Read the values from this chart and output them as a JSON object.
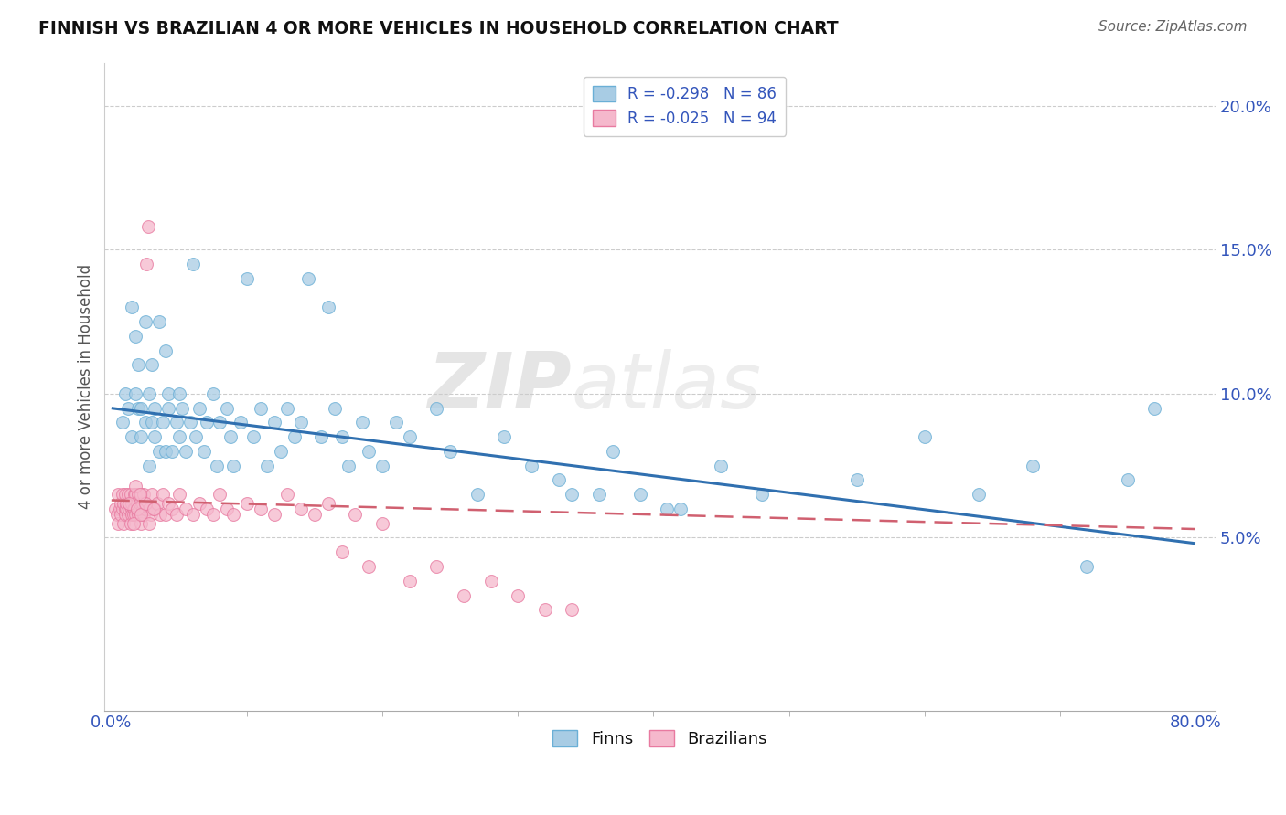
{
  "title": "FINNISH VS BRAZILIAN 4 OR MORE VEHICLES IN HOUSEHOLD CORRELATION CHART",
  "source": "Source: ZipAtlas.com",
  "ylabel": "4 or more Vehicles in Household",
  "legend_entry1": "R = -0.298   N = 86",
  "legend_entry2": "R = -0.025   N = 94",
  "finn_color": "#a8cce4",
  "finn_edge_color": "#6aafd6",
  "brazil_color": "#f5b8cc",
  "brazil_edge_color": "#e87aa0",
  "finn_line_color": "#3070b0",
  "brazil_line_color": "#d06070",
  "finn_R": -0.298,
  "finn_N": 86,
  "brazil_R": -0.025,
  "brazil_N": 94,
  "xlim": [
    -0.005,
    0.815
  ],
  "ylim": [
    -0.01,
    0.215
  ],
  "x_left_label": "0.0%",
  "x_right_label": "80.0%",
  "ytick_values": [
    0.05,
    0.1,
    0.15,
    0.2
  ],
  "finn_line_start_y": 0.095,
  "finn_line_end_y": 0.048,
  "brazil_line_start_y": 0.063,
  "brazil_line_end_y": 0.053,
  "finn_x": [
    0.008,
    0.01,
    0.012,
    0.015,
    0.015,
    0.018,
    0.018,
    0.02,
    0.02,
    0.022,
    0.022,
    0.025,
    0.025,
    0.028,
    0.028,
    0.03,
    0.03,
    0.032,
    0.032,
    0.035,
    0.035,
    0.038,
    0.04,
    0.04,
    0.042,
    0.042,
    0.045,
    0.048,
    0.05,
    0.05,
    0.052,
    0.055,
    0.058,
    0.06,
    0.062,
    0.065,
    0.068,
    0.07,
    0.075,
    0.078,
    0.08,
    0.085,
    0.088,
    0.09,
    0.095,
    0.1,
    0.105,
    0.11,
    0.115,
    0.12,
    0.125,
    0.13,
    0.135,
    0.14,
    0.145,
    0.155,
    0.16,
    0.165,
    0.17,
    0.175,
    0.185,
    0.19,
    0.2,
    0.21,
    0.22,
    0.24,
    0.25,
    0.27,
    0.29,
    0.31,
    0.33,
    0.36,
    0.39,
    0.42,
    0.45,
    0.48,
    0.55,
    0.6,
    0.64,
    0.68,
    0.72,
    0.75,
    0.34,
    0.37,
    0.41,
    0.77
  ],
  "finn_y": [
    0.09,
    0.1,
    0.095,
    0.13,
    0.085,
    0.1,
    0.12,
    0.095,
    0.11,
    0.085,
    0.095,
    0.125,
    0.09,
    0.1,
    0.075,
    0.11,
    0.09,
    0.085,
    0.095,
    0.08,
    0.125,
    0.09,
    0.115,
    0.08,
    0.1,
    0.095,
    0.08,
    0.09,
    0.1,
    0.085,
    0.095,
    0.08,
    0.09,
    0.145,
    0.085,
    0.095,
    0.08,
    0.09,
    0.1,
    0.075,
    0.09,
    0.095,
    0.085,
    0.075,
    0.09,
    0.14,
    0.085,
    0.095,
    0.075,
    0.09,
    0.08,
    0.095,
    0.085,
    0.09,
    0.14,
    0.085,
    0.13,
    0.095,
    0.085,
    0.075,
    0.09,
    0.08,
    0.075,
    0.09,
    0.085,
    0.095,
    0.08,
    0.065,
    0.085,
    0.075,
    0.07,
    0.065,
    0.065,
    0.06,
    0.075,
    0.065,
    0.07,
    0.085,
    0.065,
    0.075,
    0.04,
    0.07,
    0.065,
    0.08,
    0.06,
    0.095
  ],
  "brazil_x": [
    0.003,
    0.004,
    0.005,
    0.005,
    0.006,
    0.007,
    0.007,
    0.008,
    0.008,
    0.009,
    0.009,
    0.01,
    0.01,
    0.01,
    0.011,
    0.011,
    0.012,
    0.012,
    0.013,
    0.013,
    0.014,
    0.014,
    0.015,
    0.015,
    0.015,
    0.016,
    0.016,
    0.017,
    0.017,
    0.018,
    0.018,
    0.019,
    0.019,
    0.02,
    0.02,
    0.021,
    0.021,
    0.022,
    0.022,
    0.023,
    0.023,
    0.024,
    0.024,
    0.025,
    0.025,
    0.026,
    0.027,
    0.028,
    0.029,
    0.03,
    0.032,
    0.034,
    0.036,
    0.038,
    0.04,
    0.042,
    0.045,
    0.048,
    0.05,
    0.055,
    0.06,
    0.065,
    0.07,
    0.075,
    0.08,
    0.085,
    0.09,
    0.1,
    0.11,
    0.12,
    0.13,
    0.14,
    0.15,
    0.16,
    0.17,
    0.18,
    0.19,
    0.2,
    0.22,
    0.24,
    0.26,
    0.28,
    0.3,
    0.32,
    0.34,
    0.013,
    0.016,
    0.019,
    0.022,
    0.025,
    0.028,
    0.031,
    0.018,
    0.021
  ],
  "brazil_y": [
    0.06,
    0.058,
    0.065,
    0.055,
    0.06,
    0.058,
    0.062,
    0.06,
    0.065,
    0.055,
    0.062,
    0.06,
    0.058,
    0.065,
    0.06,
    0.062,
    0.058,
    0.065,
    0.06,
    0.062,
    0.055,
    0.065,
    0.06,
    0.058,
    0.062,
    0.06,
    0.058,
    0.065,
    0.06,
    0.058,
    0.065,
    0.06,
    0.062,
    0.058,
    0.065,
    0.06,
    0.062,
    0.055,
    0.065,
    0.06,
    0.062,
    0.058,
    0.065,
    0.06,
    0.062,
    0.145,
    0.158,
    0.06,
    0.058,
    0.065,
    0.06,
    0.062,
    0.058,
    0.065,
    0.058,
    0.062,
    0.06,
    0.058,
    0.065,
    0.06,
    0.058,
    0.062,
    0.06,
    0.058,
    0.065,
    0.06,
    0.058,
    0.062,
    0.06,
    0.058,
    0.065,
    0.06,
    0.058,
    0.062,
    0.045,
    0.058,
    0.04,
    0.055,
    0.035,
    0.04,
    0.03,
    0.035,
    0.03,
    0.025,
    0.025,
    0.062,
    0.055,
    0.06,
    0.058,
    0.062,
    0.055,
    0.06,
    0.068,
    0.065
  ]
}
